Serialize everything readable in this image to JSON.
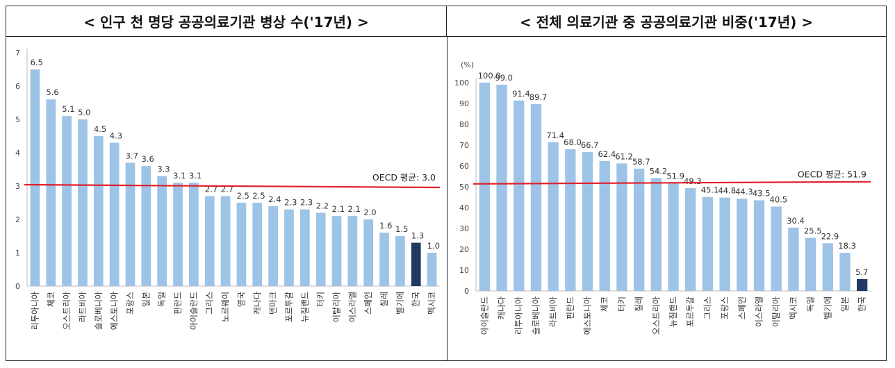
{
  "chart_data": [
    {
      "type": "bar",
      "title": "< 인구 천 명당 공공의료기관 병상 수('17년) >",
      "categories": [
        "리투아니아",
        "체코",
        "오스트리아",
        "라트비아",
        "슬로베니아",
        "에스토니아",
        "포랑스",
        "일본",
        "독일",
        "핀란드",
        "아이슬란드",
        "그리스",
        "노르웨이",
        "영국",
        "캐나다",
        "덴마크",
        "포르투갈",
        "뉴질랜드",
        "터키",
        "이탈리아",
        "이스라엘",
        "스페인",
        "칠레",
        "벨기에",
        "한국",
        "멕시코"
      ],
      "values": [
        6.5,
        5.6,
        5.1,
        5.0,
        4.5,
        4.3,
        3.7,
        3.6,
        3.3,
        3.1,
        3.1,
        2.7,
        2.7,
        2.5,
        2.5,
        2.4,
        2.3,
        2.3,
        2.2,
        2.1,
        2.1,
        2.0,
        1.6,
        1.5,
        1.3,
        1.0
      ],
      "value_labels": [
        "6.5",
        "5.6",
        "5.1",
        "5.0",
        "4.5",
        "4.3",
        "3.7",
        "3.6",
        "3.3",
        "3.1",
        "3.1",
        "2.7",
        "2.7",
        "2.5",
        "2.5",
        "2.4",
        "2.3",
        "2.3",
        "2.2",
        "2.1",
        "2.1",
        "2.0",
        "1.6",
        "1.5",
        "1.3",
        "1.0"
      ],
      "highlight": "한국",
      "ylim": [
        0,
        7
      ],
      "yticks": [
        "0",
        "1",
        "2",
        "3",
        "4",
        "5",
        "6",
        "7"
      ],
      "ylabel": "",
      "xlabel": "",
      "reference_line": {
        "value": 3.0,
        "label": "OECD 평균: 3.0"
      },
      "colors": {
        "bar": "#9dc3e6",
        "highlight": "#1f3864",
        "line": "#e0202a"
      }
    },
    {
      "type": "bar",
      "title": "< 전체 의료기관 중 공공의료기관 비중('17년) >",
      "categories": [
        "아이슬란드",
        "캐나다",
        "리투아니아",
        "슬로베니아",
        "라트비아",
        "핀란드",
        "에스토니아",
        "체코",
        "터키",
        "칠레",
        "오스트리아",
        "뉴질랜드",
        "포르투갈",
        "그리스",
        "포랑스",
        "스페인",
        "이스라엘",
        "이탈리아",
        "멕시코",
        "독일",
        "벨기에",
        "일본",
        "한국"
      ],
      "values": [
        100.0,
        99.0,
        91.4,
        89.7,
        71.4,
        68.0,
        66.7,
        62.4,
        61.2,
        58.7,
        54.2,
        51.9,
        49.3,
        45.1,
        44.8,
        44.3,
        43.5,
        40.5,
        30.4,
        25.5,
        22.9,
        18.3,
        5.7
      ],
      "value_labels": [
        "100.0",
        "99.0",
        "91.4",
        "89.7",
        "71.4",
        "68.0",
        "66.7",
        "62.4",
        "61.2",
        "58.7",
        "54.2",
        "51.9",
        "49.3",
        "45.1",
        "44.8",
        "44.3",
        "43.5",
        "40.5",
        "30.4",
        "25.5",
        "22.9",
        "18.3",
        "5.7"
      ],
      "highlight": "한국",
      "ylim": [
        0,
        100
      ],
      "yticks": [
        "0",
        "10",
        "20",
        "30",
        "40",
        "50",
        "60",
        "70",
        "80",
        "90",
        "100"
      ],
      "unit_label": "(%)",
      "ylabel": "",
      "xlabel": "",
      "reference_line": {
        "value": 51.9,
        "label": "OECD 평균: 51.9"
      },
      "colors": {
        "bar": "#9dc3e6",
        "highlight": "#1f3864",
        "line": "#e0202a"
      }
    }
  ]
}
